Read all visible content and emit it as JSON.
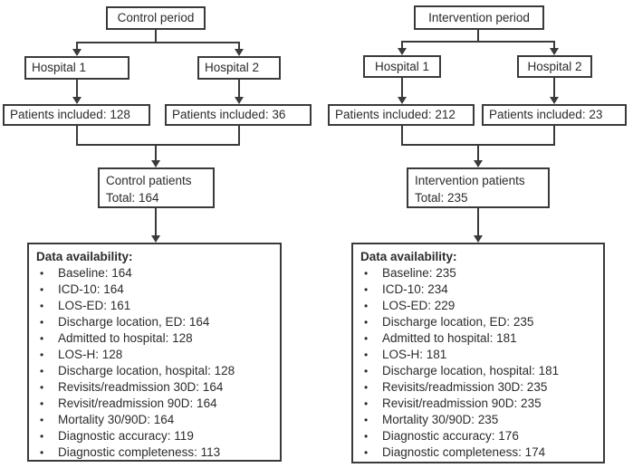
{
  "colors": {
    "background": "#ffffff",
    "line": "#3a3a3a",
    "text": "#2b2b2b"
  },
  "bullet_icon": "•",
  "left_flow": {
    "period": "Control period",
    "hospital1": "Hospital 1",
    "hospital2": "Hospital 2",
    "patients1": "Patients included: 128",
    "patients2": "Patients included: 36",
    "total_title": "Control patients",
    "total_value": "Total: 164",
    "data_title": "Data availability:",
    "data_items": [
      "Baseline: 164",
      "ICD-10: 164",
      "LOS-ED: 161",
      "Discharge location, ED: 164",
      "Admitted to hospital: 128",
      "LOS-H: 128",
      "Discharge location, hospital: 128",
      "Revisits/readmission 30D: 164",
      "Revisit/readmission 90D: 164",
      "Mortality 30/90D: 164",
      "Diagnostic accuracy: 119",
      "Diagnostic completeness: 113"
    ]
  },
  "right_flow": {
    "period": "Intervention period",
    "hospital1": "Hospital 1",
    "hospital2": "Hospital 2",
    "patients1": "Patients included: 212",
    "patients2": "Patients included: 23",
    "total_title": "Intervention patients",
    "total_value": "Total: 235",
    "data_title": "Data availability:",
    "data_items": [
      "Baseline: 235",
      "ICD-10: 234",
      "LOS-ED: 229",
      "Discharge location, ED: 235",
      "Admitted to hospital: 181",
      "LOS-H: 181",
      "Discharge location, hospital: 181",
      "Revisits/readmission 30D: 235",
      "Revisit/readmission 90D: 235",
      "Mortality 30/90D: 235",
      "Diagnostic accuracy: 176",
      "Diagnostic completeness: 174"
    ]
  }
}
